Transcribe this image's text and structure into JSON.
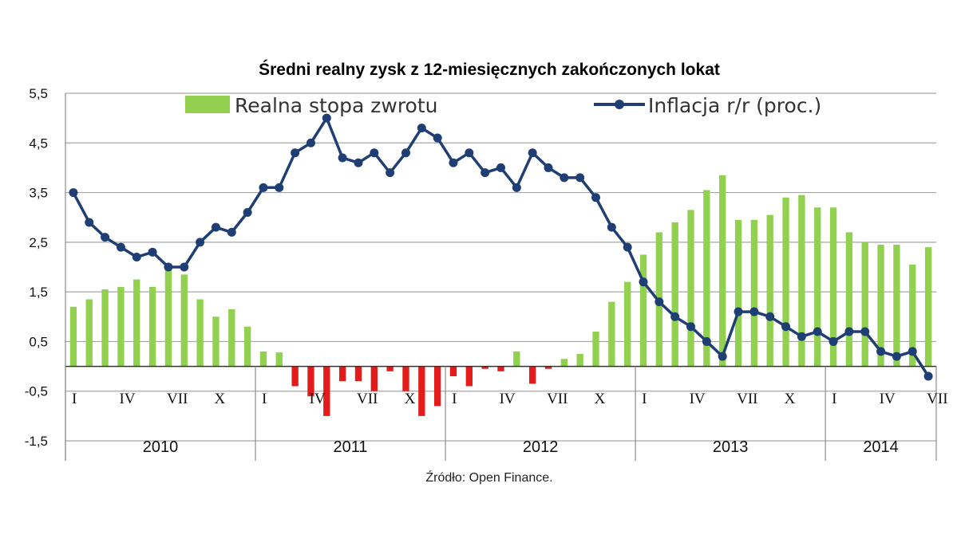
{
  "chart_data": {
    "type": "bar+line",
    "title": "Średni realny zysk z 12-miesięcznych  zakończonych  lokat",
    "source": "Źródło: Open Finance.",
    "ylim": [
      -1.5,
      5.5
    ],
    "yticks": [
      "5,5",
      "4,5",
      "3,5",
      "2,5",
      "1,5",
      "0,5",
      "-0,5",
      "-1,5"
    ],
    "ytick_values": [
      5.5,
      4.5,
      3.5,
      2.5,
      1.5,
      0.5,
      -0.5,
      -1.5
    ],
    "grid": true,
    "legend_position": "top",
    "month_ticks": [
      {
        "label": "I",
        "index": 0
      },
      {
        "label": "IV",
        "index": 3
      },
      {
        "label": "VII",
        "index": 6
      },
      {
        "label": "X",
        "index": 9
      },
      {
        "label": "I",
        "index": 12
      },
      {
        "label": "IV",
        "index": 15
      },
      {
        "label": "VII",
        "index": 18
      },
      {
        "label": "X",
        "index": 21
      },
      {
        "label": "I",
        "index": 24
      },
      {
        "label": "IV",
        "index": 27
      },
      {
        "label": "VII",
        "index": 30
      },
      {
        "label": "X",
        "index": 33
      },
      {
        "label": "I",
        "index": 36
      },
      {
        "label": "IV",
        "index": 39
      },
      {
        "label": "VII",
        "index": 42
      },
      {
        "label": "X",
        "index": 45
      },
      {
        "label": "I",
        "index": 48
      },
      {
        "label": "IV",
        "index": 51
      },
      {
        "label": "VII",
        "index": 54
      }
    ],
    "years": [
      {
        "label": "2010",
        "start": 0,
        "end": 12
      },
      {
        "label": "2011",
        "start": 12,
        "end": 24
      },
      {
        "label": "2012",
        "start": 24,
        "end": 36
      },
      {
        "label": "2013",
        "start": 36,
        "end": 48
      },
      {
        "label": "2014",
        "start": 48,
        "end": 55
      }
    ],
    "series": [
      {
        "name": "Realna stopa zwrotu",
        "kind": "bar",
        "color": "#92D050",
        "negative_color": "#E31B1B",
        "values": [
          1.2,
          1.35,
          1.55,
          1.6,
          1.75,
          1.6,
          1.95,
          1.85,
          1.35,
          1.0,
          1.15,
          0.8,
          0.3,
          0.28,
          -0.4,
          -0.6,
          -1.0,
          -0.3,
          -0.3,
          -0.5,
          -0.1,
          -0.5,
          -1.0,
          -0.8,
          -0.2,
          -0.4,
          -0.05,
          -0.1,
          0.3,
          -0.35,
          -0.05,
          0.15,
          0.25,
          0.7,
          1.3,
          1.7,
          2.25,
          2.7,
          2.9,
          3.15,
          3.55,
          3.85,
          2.95,
          2.95,
          3.05,
          3.4,
          3.45,
          3.2,
          3.2,
          2.7,
          2.5,
          2.45,
          2.45,
          2.05,
          2.4
        ]
      },
      {
        "name": "Inflacja r/r (proc.)",
        "kind": "line",
        "color": "#1F3E73",
        "values": [
          3.5,
          2.9,
          2.6,
          2.4,
          2.2,
          2.3,
          2.0,
          2.0,
          2.5,
          2.8,
          2.7,
          3.1,
          3.6,
          3.6,
          4.3,
          4.5,
          5.0,
          4.2,
          4.1,
          4.3,
          3.9,
          4.3,
          4.8,
          4.6,
          4.1,
          4.3,
          3.9,
          4.0,
          3.6,
          4.3,
          4.0,
          3.8,
          3.8,
          3.4,
          2.8,
          2.4,
          1.7,
          1.3,
          1.0,
          0.8,
          0.5,
          0.2,
          1.1,
          1.1,
          1.0,
          0.8,
          0.6,
          0.7,
          0.5,
          0.7,
          0.7,
          0.3,
          0.2,
          0.3,
          -0.2
        ]
      }
    ]
  }
}
